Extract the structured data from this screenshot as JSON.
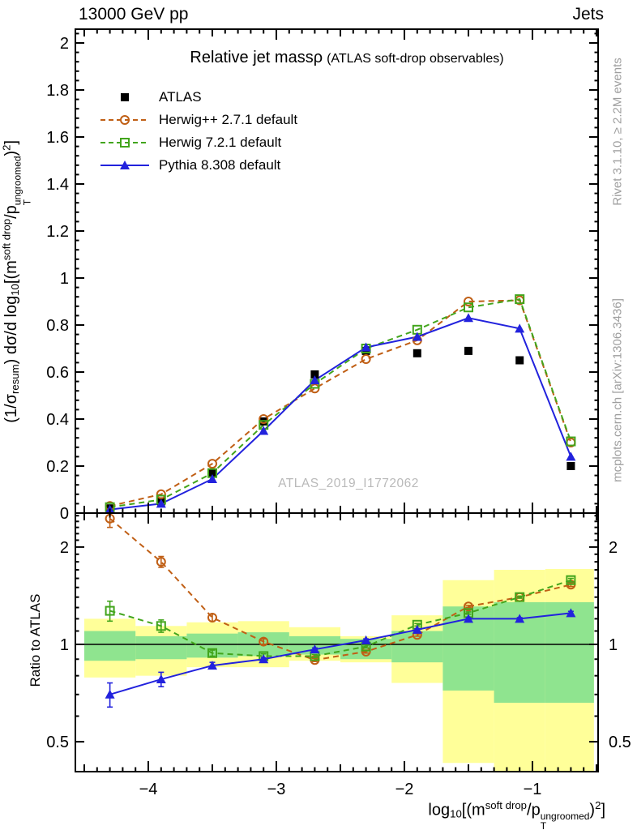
{
  "header": {
    "beam": "13000 GeV pp",
    "process": "Jets"
  },
  "plot_title": {
    "main": "Relative jet mass",
    "symbol": "ρ",
    "paren": "(ATLAS soft-drop observables)"
  },
  "watermark": "ATLAS_2019_I1772062",
  "side_notes": {
    "top": "Rivet 3.1.10, ≥ 2.2M events",
    "bottom": "mcplots.cern.ch [arXiv:1306.3436]"
  },
  "axis_labels": {
    "ratio_y": "Ratio to ATLAS",
    "main_y_segments": [
      {
        "t": "(1/σ"
      },
      {
        "t": "resum",
        "s": "sub"
      },
      {
        "t": ") dσ/d log"
      },
      {
        "t": "10",
        "s": "sub"
      },
      {
        "t": "[(m"
      },
      {
        "t": "soft drop",
        "s": "sup"
      },
      {
        "t": "/p"
      },
      {
        "stack": {
          "over": "ungroomed",
          "under": "T"
        }
      },
      {
        "t": ")"
      },
      {
        "t": "2",
        "s": "sup"
      },
      {
        "t": "]"
      }
    ],
    "x_segments": [
      {
        "t": "log"
      },
      {
        "t": "10",
        "s": "sub"
      },
      {
        "t": "[(m"
      },
      {
        "t": "soft drop",
        "s": "sup"
      },
      {
        "t": "/p"
      },
      {
        "stack": {
          "over": "ungroomed",
          "under": "T"
        }
      },
      {
        "t": ")"
      },
      {
        "t": "2",
        "s": "sup"
      },
      {
        "t": "]"
      }
    ]
  },
  "chart_data": {
    "type": "line",
    "x": [
      -4.3,
      -3.9,
      -3.5,
      -3.1,
      -2.7,
      -2.3,
      -1.9,
      -1.5,
      -1.1,
      -0.7
    ],
    "ratio_reference": "ATLAS",
    "series": [
      {
        "name": "ATLAS",
        "color": "#000000",
        "marker": "square-filled",
        "line": "none",
        "values": [
          0.02,
          0.05,
          0.17,
          0.39,
          0.59,
          0.69,
          0.68,
          0.69,
          0.65,
          0.2
        ]
      },
      {
        "name": "Herwig++ 2.7.1 default",
        "color": "#c05f15",
        "marker": "circle-open",
        "line": "dashed",
        "values": [
          0.03,
          0.08,
          0.21,
          0.4,
          0.53,
          0.655,
          0.735,
          0.9,
          0.905,
          0.3
        ],
        "ratio": [
          2.45,
          1.8,
          1.21,
          1.02,
          0.895,
          0.95,
          1.07,
          1.31,
          1.4,
          1.53
        ],
        "ratio_err": [
          0.15,
          0.07,
          0.03,
          0.02,
          0.01,
          0.01,
          0.01,
          0.01,
          0.01,
          0.02
        ]
      },
      {
        "name": "Herwig 7.2.1 default",
        "color": "#42a51c",
        "marker": "square-open",
        "line": "dashed",
        "values": [
          0.025,
          0.057,
          0.17,
          0.375,
          0.55,
          0.7,
          0.78,
          0.875,
          0.91,
          0.305
        ],
        "ratio": [
          1.27,
          1.14,
          0.94,
          0.92,
          0.92,
          0.985,
          1.15,
          1.25,
          1.4,
          1.58
        ],
        "ratio_err": [
          0.09,
          0.05,
          0.02,
          0.015,
          0.01,
          0.01,
          0.01,
          0.01,
          0.01,
          0.02
        ]
      },
      {
        "name": "Pythia 8.308 default",
        "color": "#2222dd",
        "marker": "triangle-filled",
        "line": "solid",
        "values": [
          0.015,
          0.04,
          0.145,
          0.35,
          0.565,
          0.705,
          0.75,
          0.83,
          0.785,
          0.24
        ],
        "ratio": [
          0.7,
          0.78,
          0.86,
          0.9,
          0.965,
          1.03,
          1.11,
          1.2,
          1.2,
          1.25
        ],
        "ratio_err": [
          0.06,
          0.04,
          0.02,
          0.01,
          0.01,
          0.01,
          0.01,
          0.01,
          0.01,
          0.015
        ]
      }
    ],
    "bands": {
      "edges": [
        -4.5,
        -4.1,
        -3.7,
        -3.3,
        -2.9,
        -2.5,
        -2.1,
        -1.7,
        -1.3,
        -0.9,
        -0.52
      ],
      "yellow": [
        [
          0.79,
          1.2
        ],
        [
          0.8,
          1.14
        ],
        [
          0.85,
          1.17
        ],
        [
          0.85,
          1.18
        ],
        [
          0.89,
          1.13
        ],
        [
          0.88,
          1.06
        ],
        [
          0.76,
          1.23
        ],
        [
          0.43,
          1.58
        ],
        [
          0.4,
          1.7
        ],
        [
          0.4,
          1.71
        ]
      ],
      "green": [
        [
          0.89,
          1.1
        ],
        [
          0.9,
          1.06
        ],
        [
          0.91,
          1.08
        ],
        [
          0.92,
          1.09
        ],
        [
          0.93,
          1.06
        ],
        [
          0.9,
          1.04
        ],
        [
          0.88,
          1.1
        ],
        [
          0.72,
          1.31
        ],
        [
          0.66,
          1.35
        ],
        [
          0.66,
          1.35
        ]
      ],
      "yellow_color": "#ffff99",
      "green_color": "#8fe48f"
    },
    "axes": {
      "xlim": [
        -4.56,
        -0.49
      ],
      "main_ylim": [
        0,
        2.06
      ],
      "ratio_ylim": [
        0.4,
        2.55
      ],
      "ratio_log": true,
      "xticks": [
        {
          "v": -4,
          "t": "−4"
        },
        {
          "v": -3,
          "t": "−3"
        },
        {
          "v": -2,
          "t": "−2"
        },
        {
          "v": -1,
          "t": "−1"
        }
      ],
      "main_yticks": [
        {
          "v": 0,
          "t": "0"
        },
        {
          "v": 0.2,
          "t": "0.2"
        },
        {
          "v": 0.4,
          "t": "0.4"
        },
        {
          "v": 0.6,
          "t": "0.6"
        },
        {
          "v": 0.8,
          "t": "0.8"
        },
        {
          "v": 1,
          "t": "1"
        },
        {
          "v": 1.2,
          "t": "1.2"
        },
        {
          "v": 1.4,
          "t": "1.4"
        },
        {
          "v": 1.6,
          "t": "1.6"
        },
        {
          "v": 1.8,
          "t": "1.8"
        },
        {
          "v": 2,
          "t": "2"
        }
      ],
      "ratio_yticks": [
        {
          "v": 0.5,
          "t": "0.5"
        },
        {
          "v": 1,
          "t": "1"
        },
        {
          "v": 2,
          "t": "2"
        }
      ]
    }
  }
}
